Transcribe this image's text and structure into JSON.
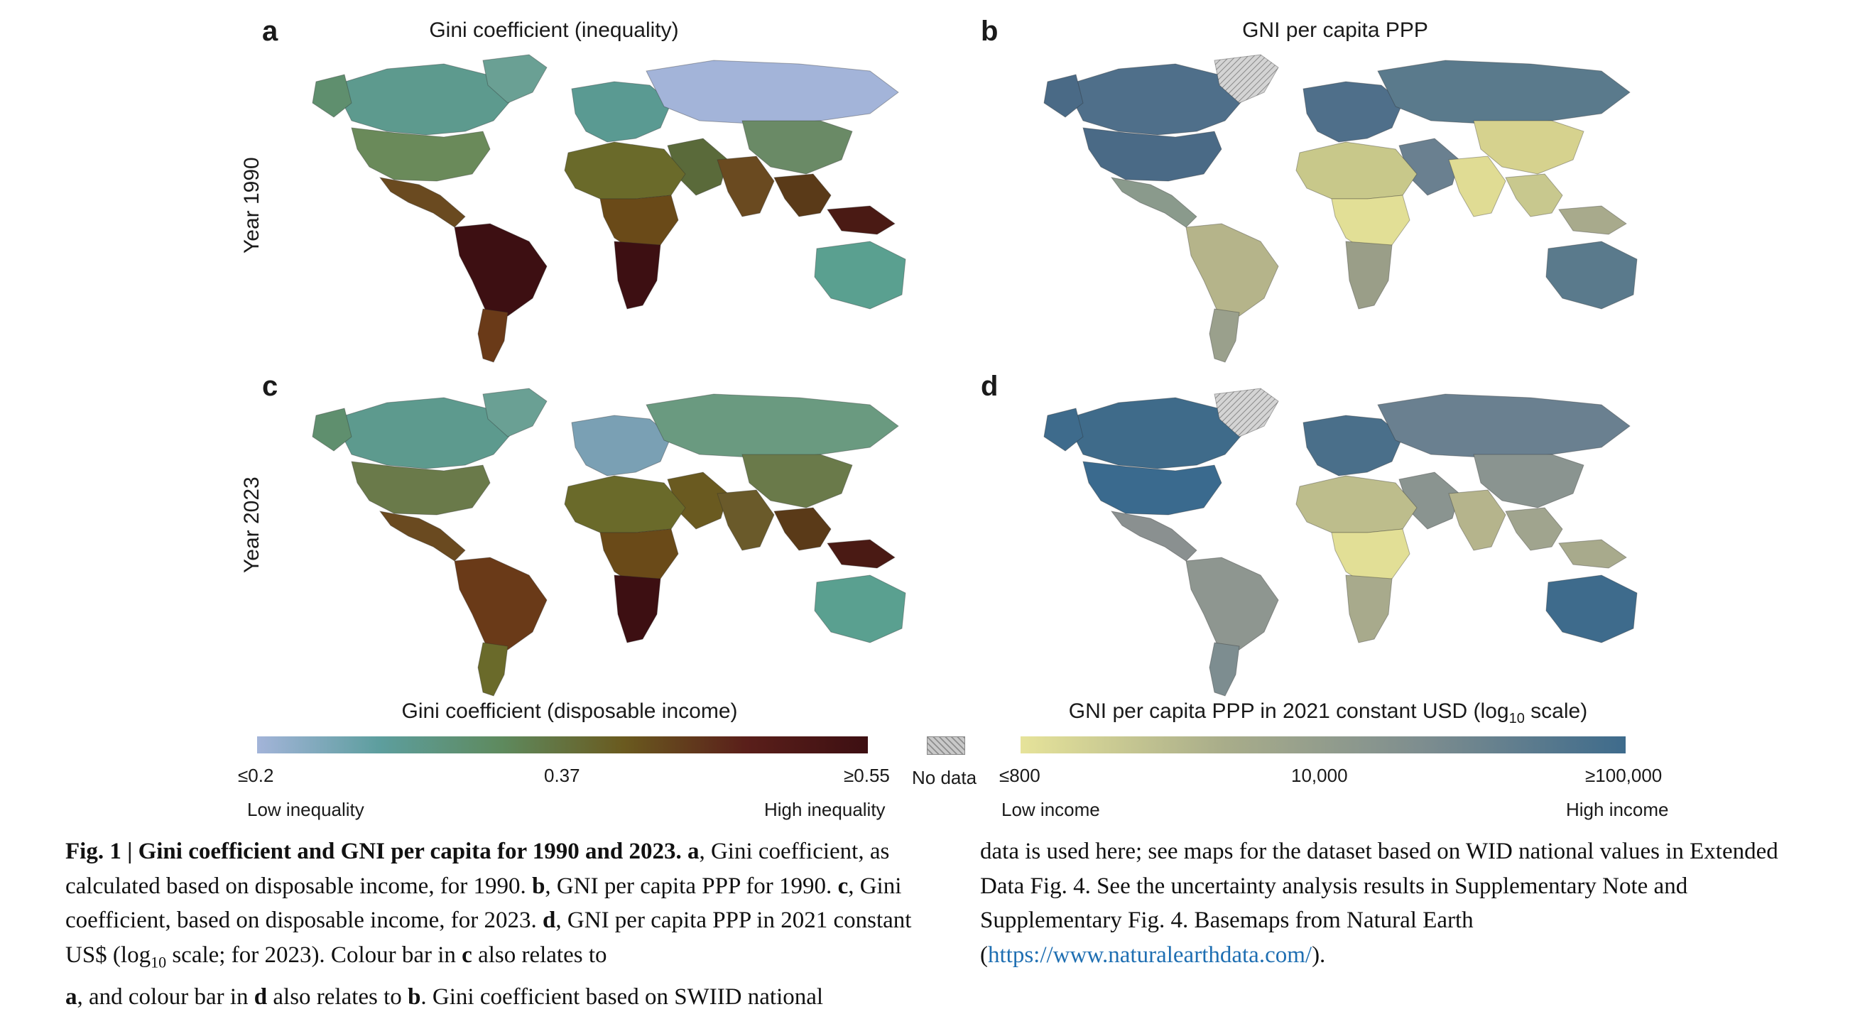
{
  "panels": {
    "a": {
      "letter": "a",
      "title": "Gini coefficient (inequality)"
    },
    "b": {
      "letter": "b",
      "title": "GNI per capita PPP"
    },
    "c": {
      "letter": "c"
    },
    "d": {
      "letter": "d"
    }
  },
  "rows": {
    "row1": "Year 1990",
    "row2": "Year 2023"
  },
  "colorbar_gini": {
    "title": "Gini coefficient (disposable income)",
    "ticks": [
      "≤0.2",
      "0.37",
      "≥0.55"
    ],
    "low_label": "Low inequality",
    "high_label": "High inequality",
    "colors": [
      "#a3b4d9",
      "#5d9e9e",
      "#5e8a5e",
      "#6a5a1f",
      "#5a1f1a",
      "#3d0f12"
    ]
  },
  "nodata": {
    "label": "No data"
  },
  "colorbar_gni": {
    "title_pre": "GNI per capita PPP in 2021 constant USD (log",
    "title_sub": "10",
    "title_post": " scale)",
    "ticks": [
      "≤800",
      "10,000",
      "≥100,000"
    ],
    "low_label": "Low income",
    "high_label": "High income",
    "colors": [
      "#e6e39a",
      "#a9ad8a",
      "#7d8d8f",
      "#3e6b8c"
    ]
  },
  "caption": {
    "fig_label": "Fig. 1 | Gini coefficient and GNI per capita for 1990 and 2023.",
    "l_a": "a",
    "t_a": ", Gini coefficient, as calculated based on disposable income, for 1990.",
    "l_b": "b",
    "t_b": ", GNI per capita PPP for 1990.",
    "l_c": "c",
    "t_c": ", Gini coefficient, based on disposable income, for 2023.",
    "l_d": "d",
    "t_d1": ", GNI per capita PPP in 2021 constant US$ (log",
    "t_d_sub": "10",
    "t_d2": " scale; for 2023). Colour bar in",
    "l_c2": "c",
    "t_e": "also relates to",
    "l_a2": "a",
    "t_f": ", and colour bar in",
    "l_d2": "d",
    "t_g": "also relates to",
    "l_b2": "b",
    "t_h": ". Gini coefficient based on SWIID national data is used here; see maps for the dataset based on WID national values in Extended Data Fig. 4. See the uncertainty analysis results in Supplementary Note and Supplementary Fig. 4. Basemaps from Natural Earth (",
    "link": "https://www.naturalearthdata.com/",
    "t_end": ")."
  },
  "maps": {
    "gini_1990": {
      "north_america": "#5f8f6e",
      "canada": "#5d9a8e",
      "greenland": "#6aa094",
      "usa": "#6a8a5a",
      "mexico": "#6a4a20",
      "south_america": "#3d0f12",
      "south_america_south": "#6a3a18",
      "europe": "#5a9a92",
      "russia": "#a3b4d9",
      "middle_east": "#5a6a3a",
      "africa_north": "#6a6a2a",
      "africa_central": "#6a4a18",
      "africa_south": "#3d0f12",
      "south_asia": "#6a4a20",
      "china": "#6a8a66",
      "se_asia": "#5a3a18",
      "australia": "#5aa090",
      "pacific": "#4a1a14"
    },
    "gini_2023": {
      "north_america": "#5f8f6e",
      "canada": "#5d9a8e",
      "greenland": "#6aa094",
      "usa": "#6a7a4a",
      "mexico": "#6a4a20",
      "south_america": "#6a3a18",
      "south_america_south": "#6a6a2a",
      "europe": "#7aa0b4",
      "russia": "#6a9a80",
      "middle_east": "#6a5a20",
      "africa_north": "#6a6a2a",
      "africa_central": "#6a4a18",
      "africa_south": "#3d0f12",
      "south_asia": "#6a5a2a",
      "china": "#6a7a4a",
      "se_asia": "#5a3a18",
      "australia": "#5aa090",
      "pacific": "#4a1a14"
    },
    "gni_1990": {
      "north_america": "#4a6a86",
      "canada": "#4f6f8a",
      "greenland": "#c8c8c8",
      "usa": "#4a6a86",
      "mexico": "#8a9a8c",
      "south_america": "#b5b48a",
      "south_america_south": "#9aa08c",
      "europe": "#4f6f8a",
      "russia": "#5a7a8c",
      "middle_east": "#6a8090",
      "africa_north": "#c8c88a",
      "africa_central": "#e2df96",
      "africa_south": "#9a9e88",
      "south_asia": "#e0dc94",
      "china": "#d6d28e",
      "se_asia": "#c8c88e",
      "australia": "#5a7a8c",
      "pacific": "#a8aa8c"
    },
    "gni_2023": {
      "north_america": "#3e6b8c",
      "canada": "#3f6b8a",
      "greenland": "#c8c8c8",
      "usa": "#3a6a8e",
      "mexico": "#8a9090",
      "south_america": "#8e9690",
      "south_america_south": "#7d8d90",
      "europe": "#4a6f8a",
      "russia": "#6a8090",
      "middle_east": "#8a9490",
      "africa_north": "#bdbd8c",
      "africa_central": "#e2df96",
      "africa_south": "#a8aa8c",
      "south_asia": "#b5b48c",
      "china": "#8a9490",
      "se_asia": "#a0a48e",
      "australia": "#3e6b8c",
      "pacific": "#a8aa8c"
    }
  }
}
